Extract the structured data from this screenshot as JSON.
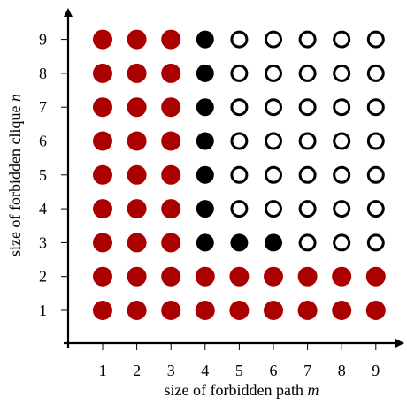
{
  "chart_data": {
    "type": "scatter",
    "xlabel": "size of forbidden path ",
    "xlabel_var": "m",
    "ylabel": "size of forbidden clique ",
    "ylabel_var": "n",
    "x_ticks": [
      "1",
      "2",
      "3",
      "4",
      "5",
      "6",
      "7",
      "8",
      "9"
    ],
    "y_ticks": [
      "1",
      "2",
      "3",
      "4",
      "5",
      "6",
      "7",
      "8",
      "9"
    ],
    "xlim": [
      0,
      9.5
    ],
    "ylim": [
      0,
      9.5
    ],
    "grid": false,
    "legend": "none",
    "colors": {
      "red": "#aa0000",
      "black": "#000000",
      "open": "#ffffff"
    },
    "rows": [
      {
        "n": 9,
        "states": [
          "red",
          "red",
          "red",
          "black",
          "open",
          "open",
          "open",
          "open",
          "open"
        ]
      },
      {
        "n": 8,
        "states": [
          "red",
          "red",
          "red",
          "black",
          "open",
          "open",
          "open",
          "open",
          "open"
        ]
      },
      {
        "n": 7,
        "states": [
          "red",
          "red",
          "red",
          "black",
          "open",
          "open",
          "open",
          "open",
          "open"
        ]
      },
      {
        "n": 6,
        "states": [
          "red",
          "red",
          "red",
          "black",
          "open",
          "open",
          "open",
          "open",
          "open"
        ]
      },
      {
        "n": 5,
        "states": [
          "red",
          "red",
          "red",
          "black",
          "open",
          "open",
          "open",
          "open",
          "open"
        ]
      },
      {
        "n": 4,
        "states": [
          "red",
          "red",
          "red",
          "black",
          "open",
          "open",
          "open",
          "open",
          "open"
        ]
      },
      {
        "n": 3,
        "states": [
          "red",
          "red",
          "red",
          "black",
          "black",
          "black",
          "open",
          "open",
          "open"
        ]
      },
      {
        "n": 2,
        "states": [
          "red",
          "red",
          "red",
          "red",
          "red",
          "red",
          "red",
          "red",
          "red"
        ]
      },
      {
        "n": 1,
        "states": [
          "red",
          "red",
          "red",
          "red",
          "red",
          "red",
          "red",
          "red",
          "red"
        ]
      }
    ]
  }
}
